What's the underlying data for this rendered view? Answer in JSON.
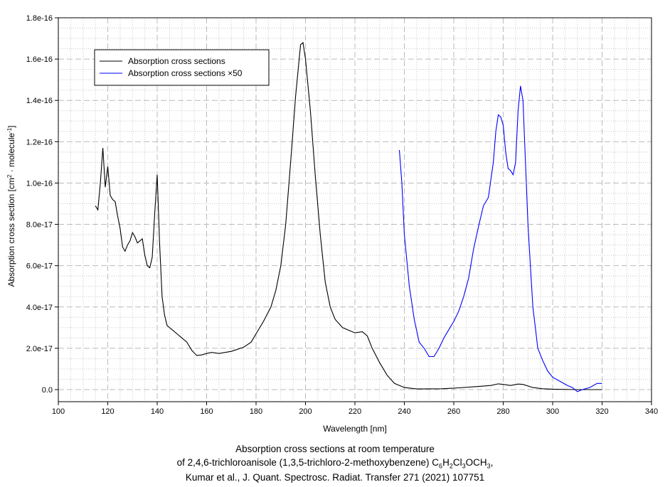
{
  "chart_data": {
    "type": "line",
    "xlabel": "Wavelength [nm]",
    "ylabel_parts": [
      "Absorption cross section [cm",
      "2",
      " · molecule",
      "-1",
      "]"
    ],
    "xlim": [
      100,
      340
    ],
    "ylim": [
      0,
      1.8e-16
    ],
    "xticks": [
      100,
      120,
      140,
      160,
      180,
      200,
      220,
      240,
      260,
      280,
      300,
      320,
      340
    ],
    "yticks": [
      0,
      2e-17,
      4e-17,
      6e-17,
      8e-17,
      1e-16,
      1.2e-16,
      1.4e-16,
      1.6e-16,
      1.8e-16
    ],
    "ytick_labels": [
      "0.0",
      "2.0e-17",
      "4.0e-17",
      "6.0e-17",
      "8.0e-17",
      "1.0e-16",
      "1.2e-16",
      "1.4e-16",
      "1.6e-16",
      "1.8e-16"
    ],
    "grid": true,
    "legend_position": "top-left",
    "series": [
      {
        "name": "Absorption cross sections",
        "color": "#000000",
        "unit_scale": 1e-17,
        "x": [
          115,
          116,
          117,
          118,
          119,
          120,
          121,
          122,
          123,
          124,
          125,
          126,
          127,
          128,
          129,
          130,
          131,
          132,
          133,
          134,
          135,
          136,
          137,
          138,
          139,
          140,
          141,
          142,
          143,
          144,
          146,
          148,
          150,
          152,
          154,
          156,
          158,
          160,
          162,
          165,
          170,
          175,
          178,
          180,
          183,
          186,
          188,
          190,
          192,
          194,
          196,
          198,
          199,
          200,
          202,
          204,
          206,
          208,
          210,
          212,
          215,
          218,
          220,
          223,
          225,
          227,
          230,
          233,
          236,
          240,
          245,
          255,
          260,
          270,
          275,
          278,
          280,
          283,
          286,
          288,
          292,
          296,
          300,
          310,
          320
        ],
        "y": [
          8.9,
          8.7,
          10.0,
          11.7,
          9.8,
          10.8,
          9.4,
          9.2,
          9.1,
          8.4,
          7.8,
          6.9,
          6.7,
          7.0,
          7.2,
          7.6,
          7.4,
          7.1,
          7.2,
          7.3,
          6.5,
          6.0,
          5.9,
          6.4,
          8.5,
          10.4,
          7.0,
          4.5,
          3.6,
          3.1,
          2.9,
          2.7,
          2.5,
          2.3,
          1.9,
          1.65,
          1.68,
          1.75,
          1.8,
          1.75,
          1.85,
          2.05,
          2.3,
          2.7,
          3.3,
          4.0,
          4.8,
          6.0,
          8.0,
          11.0,
          14.2,
          16.7,
          16.8,
          16.0,
          13.5,
          10.3,
          7.5,
          5.2,
          4.0,
          3.4,
          3.0,
          2.85,
          2.75,
          2.8,
          2.6,
          2.0,
          1.3,
          0.7,
          0.3,
          0.1,
          0.03,
          0.04,
          0.07,
          0.15,
          0.2,
          0.28,
          0.25,
          0.2,
          0.27,
          0.25,
          0.1,
          0.04,
          0.02,
          0.0,
          0.0
        ]
      },
      {
        "name": "Absorption cross sections ×50",
        "color": "#0000ff",
        "unit_scale": 1e-17,
        "x": [
          238,
          239,
          240,
          242,
          244,
          246,
          248,
          250,
          252,
          254,
          256,
          258,
          260,
          262,
          264,
          266,
          268,
          270,
          272,
          274,
          276,
          277,
          278,
          279,
          280,
          281,
          282,
          283,
          284,
          285,
          286,
          287,
          288,
          289,
          290,
          291,
          292,
          293,
          294,
          296,
          298,
          300,
          303,
          306,
          308,
          310,
          312,
          315,
          318,
          320
        ],
        "y": [
          11.6,
          10.0,
          7.5,
          5.0,
          3.4,
          2.3,
          2.0,
          1.6,
          1.6,
          2.0,
          2.5,
          2.9,
          3.3,
          3.8,
          4.5,
          5.4,
          6.8,
          7.9,
          8.9,
          9.3,
          11.0,
          12.5,
          13.3,
          13.2,
          12.8,
          11.5,
          10.7,
          10.6,
          10.4,
          11.0,
          13.5,
          14.7,
          14.0,
          11.0,
          8.0,
          6.0,
          4.0,
          3.0,
          2.0,
          1.4,
          0.9,
          0.6,
          0.4,
          0.2,
          0.1,
          -0.1,
          0.0,
          0.1,
          0.3,
          0.3
        ]
      }
    ]
  },
  "caption": {
    "line1": "Absorption cross sections at room temperature",
    "line2_prefix": "of 2,4,6-trichloroanisole (1,3,5-trichloro-2-methoxybenzene) ",
    "formula": [
      [
        "C",
        "6"
      ],
      [
        "H",
        "2"
      ],
      [
        "Cl",
        "3"
      ],
      [
        "OCH",
        "3"
      ]
    ],
    "line2_suffix": ",",
    "line3": "Kumar et al., J. Quant. Spectrosc. Radiat. Transfer 271 (2021) 107751"
  }
}
